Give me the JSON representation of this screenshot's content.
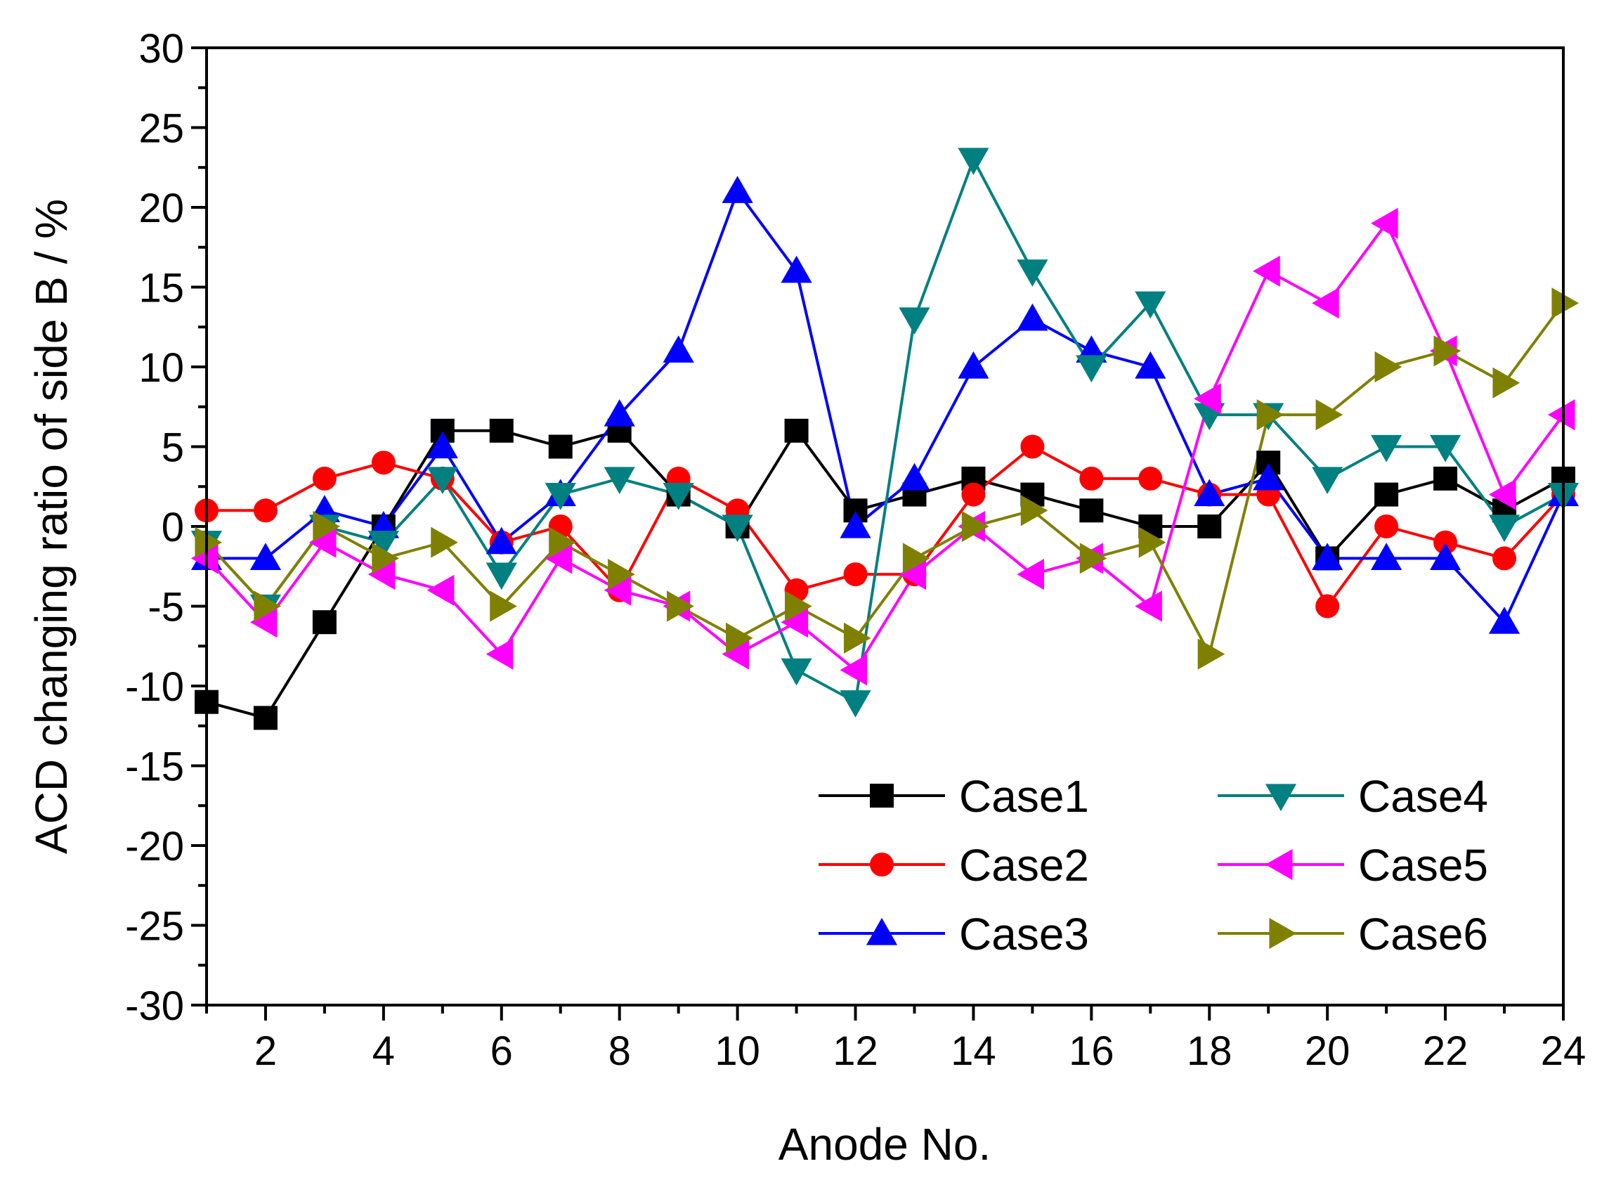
{
  "chart_data": {
    "type": "line",
    "title": "",
    "xlabel": "Anode No.",
    "ylabel": "ACD changing ratio of side B / %",
    "xlim": [
      1,
      24
    ],
    "ylim": [
      -30,
      30
    ],
    "xticks": [
      "2",
      "4",
      "6",
      "8",
      "10",
      "12",
      "14",
      "16",
      "18",
      "20",
      "22",
      "24"
    ],
    "yticks": [
      "-30",
      "-25",
      "-20",
      "-15",
      "-10",
      "-5",
      "0",
      "5",
      "10",
      "15",
      "20",
      "25",
      "30"
    ],
    "grid": false,
    "legend_position": "bottom-right",
    "x": [
      1,
      2,
      3,
      4,
      5,
      6,
      7,
      8,
      9,
      10,
      11,
      12,
      13,
      14,
      15,
      16,
      17,
      18,
      19,
      20,
      21,
      22,
      23,
      24
    ],
    "series": [
      {
        "name": "Case1",
        "color": "#000000",
        "marker": "square",
        "values": [
          -11,
          -12,
          -6,
          0,
          6,
          6,
          5,
          6,
          2,
          0,
          6,
          1,
          2,
          3,
          2,
          1,
          0,
          0,
          4,
          -2,
          2,
          3,
          1,
          3
        ]
      },
      {
        "name": "Case2",
        "color": "#ff0000",
        "marker": "circle",
        "values": [
          1,
          1,
          3,
          4,
          3,
          -1,
          0,
          -4,
          3,
          1,
          -4,
          -3,
          -3,
          2,
          5,
          3,
          3,
          2,
          2,
          -5,
          0,
          -1,
          -2,
          2
        ]
      },
      {
        "name": "Case3",
        "color": "#0000ff",
        "marker": "triangle-up",
        "values": [
          -2,
          -2,
          1,
          0,
          5,
          -1,
          2,
          7,
          11,
          21,
          16,
          0,
          3,
          10,
          13,
          11,
          10,
          2,
          3,
          -2,
          -2,
          -2,
          -6,
          2
        ]
      },
      {
        "name": "Case4",
        "color": "#008080",
        "marker": "triangle-down",
        "values": [
          -1,
          -5,
          0,
          -1,
          3,
          -3,
          2,
          3,
          2,
          0,
          -9,
          -11,
          13,
          23,
          16,
          10,
          14,
          7,
          7,
          3,
          5,
          5,
          0,
          2
        ]
      },
      {
        "name": "Case5",
        "color": "#ff00ff",
        "marker": "triangle-left",
        "values": [
          -2,
          -6,
          -1,
          -3,
          -4,
          -8,
          -2,
          -4,
          -5,
          -8,
          -6,
          -9,
          -3,
          0,
          -3,
          -2,
          -5,
          8,
          16,
          14,
          19,
          11,
          2,
          7
        ]
      },
      {
        "name": "Case6",
        "color": "#808000",
        "marker": "triangle-right",
        "values": [
          -1,
          -5,
          0,
          -2,
          -1,
          -5,
          -1,
          -3,
          -5,
          -7,
          -5,
          -7,
          -2,
          0,
          1,
          -2,
          -1,
          -8,
          7,
          7,
          10,
          11,
          9,
          14
        ]
      }
    ]
  }
}
